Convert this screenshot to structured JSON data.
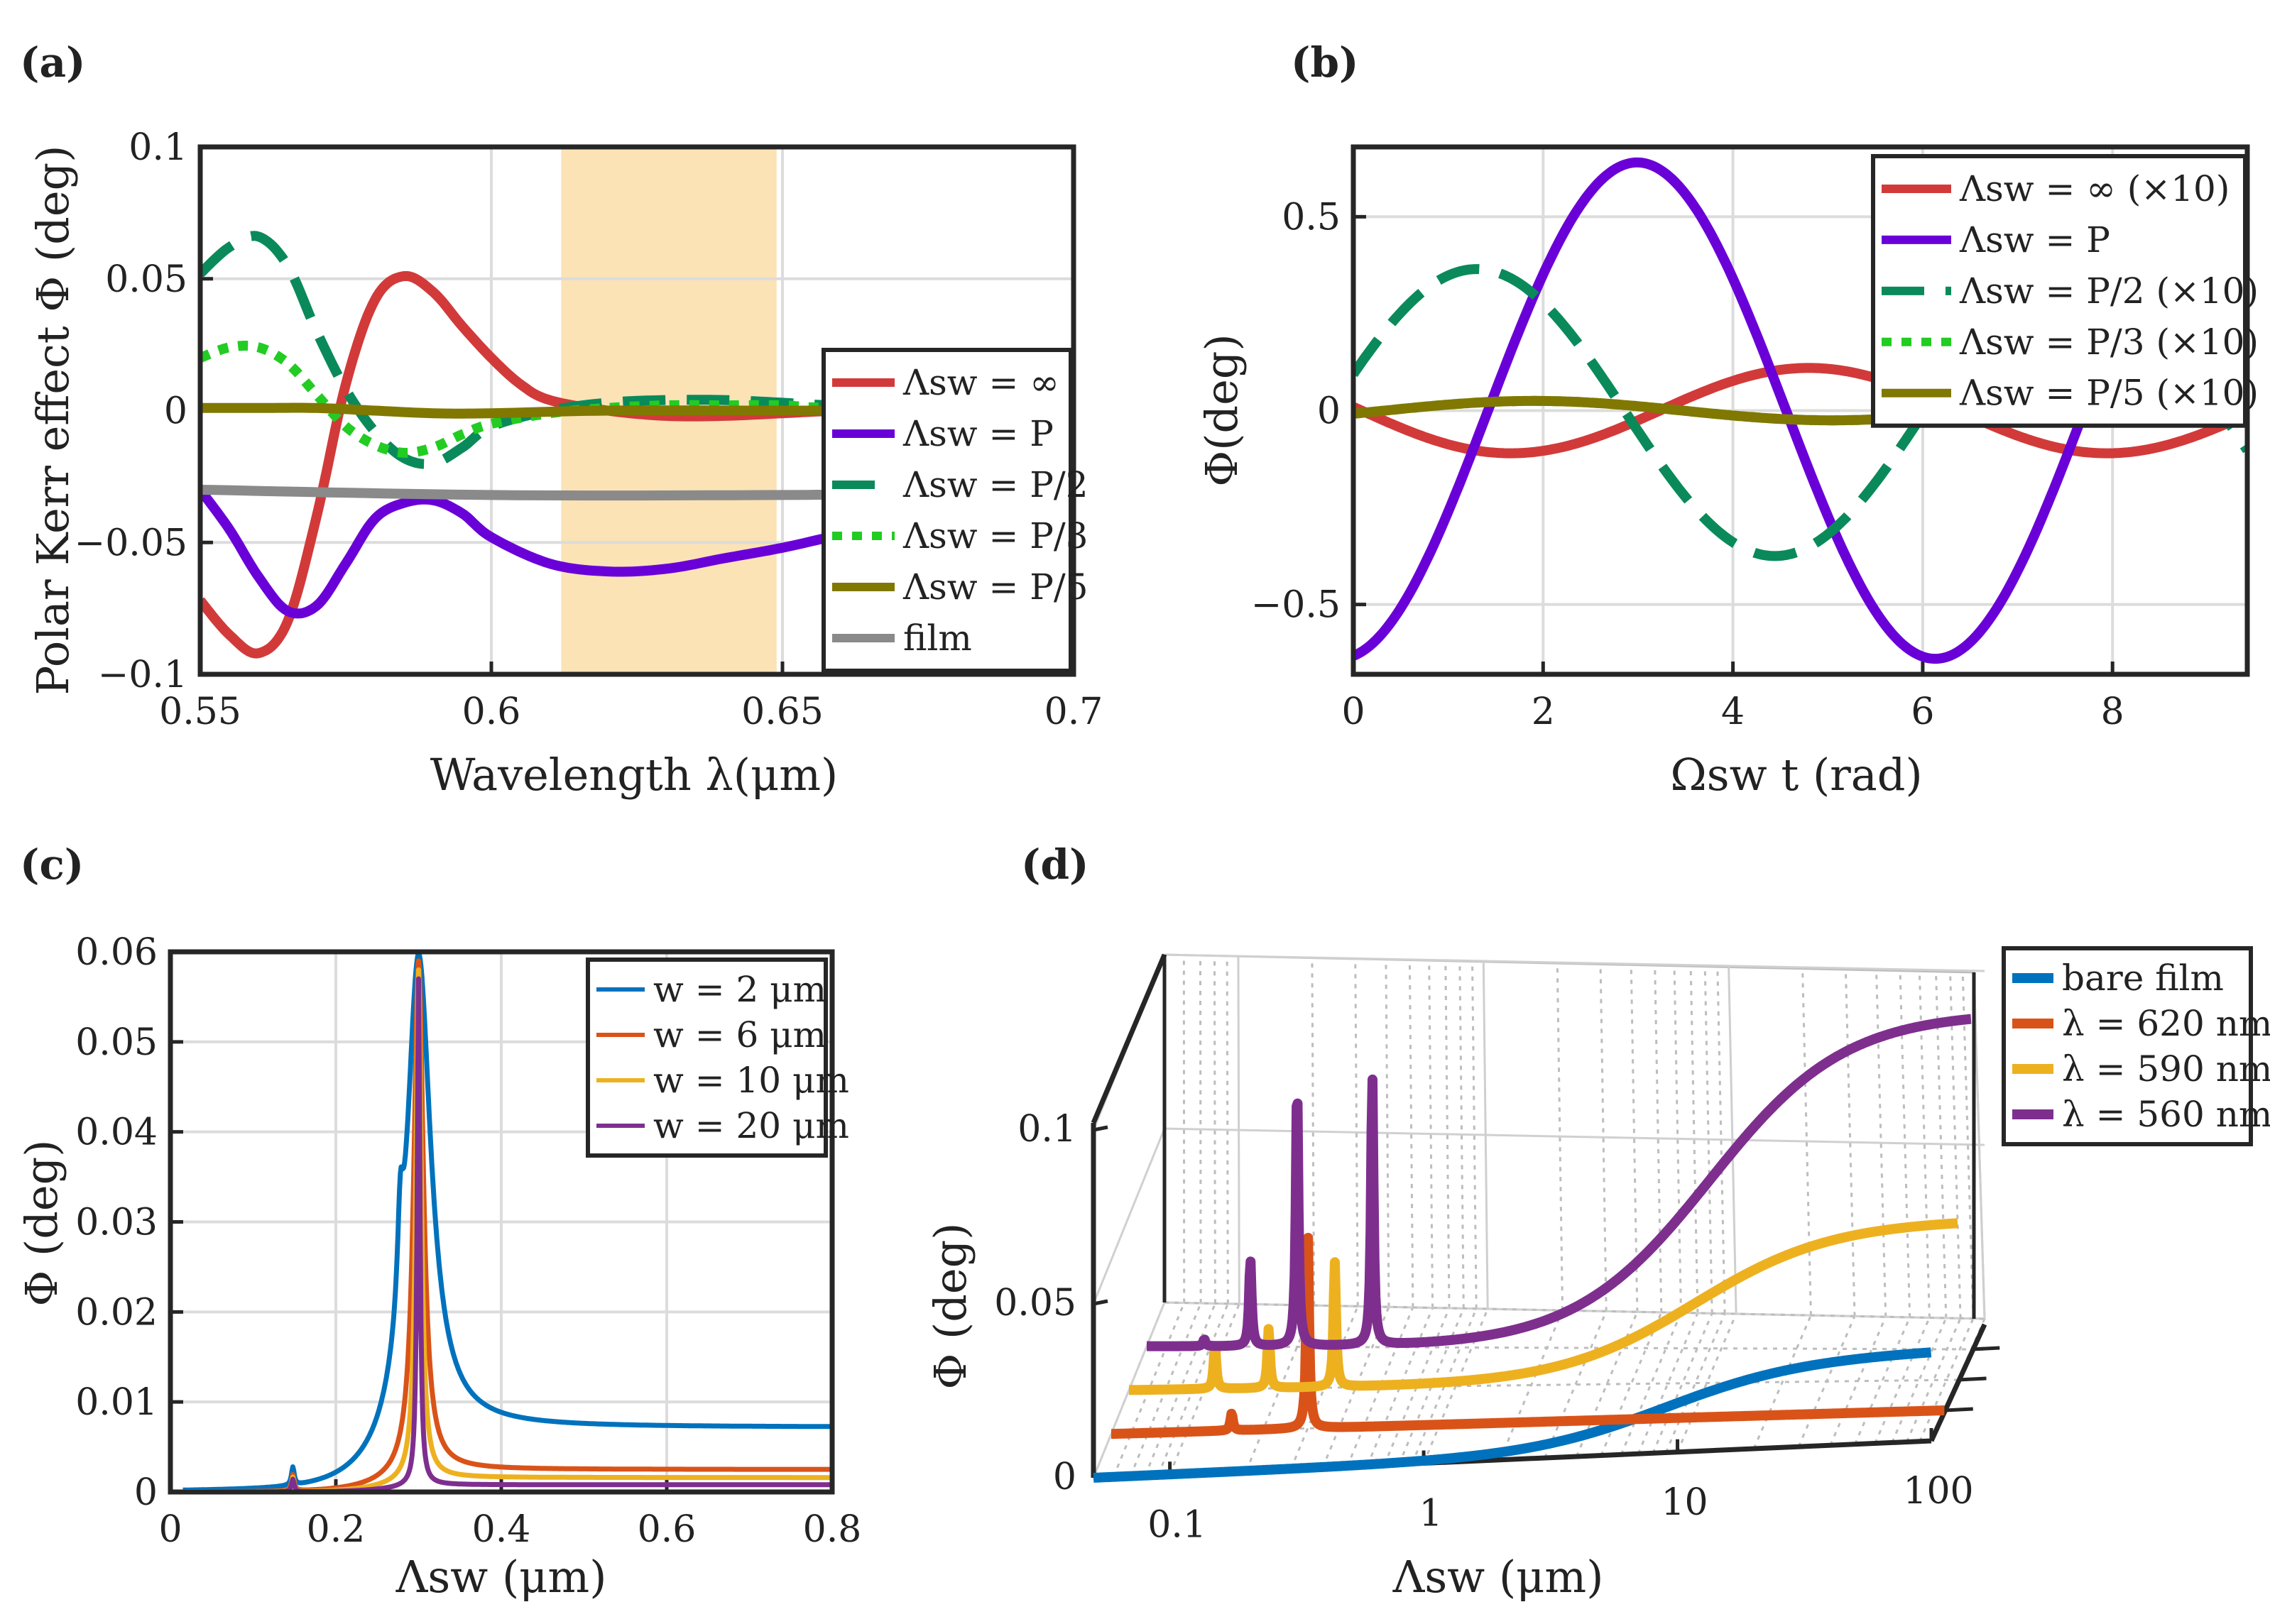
{
  "colors": {
    "red": "#d23a3a",
    "violet": "#6a00d8",
    "green": "#0a8a5a",
    "lime": "#22cc22",
    "olive": "#807800",
    "gray": "#8a8a8a",
    "band": "#fbe3b6",
    "blue": "#0072bd",
    "orange": "#d95319",
    "yellow": "#edb120",
    "purple": "#7e2f8e"
  },
  "chart_data": [
    {
      "id": "a",
      "panel_label": "(a)",
      "type": "line",
      "xlabel": "Wavelength λ(μm)",
      "ylabel": "Polar Kerr effect Φ (deg)",
      "xlim": [
        0.55,
        0.7
      ],
      "ylim": [
        -0.1,
        0.1
      ],
      "xticks": [
        0.55,
        0.6,
        0.65,
        0.7
      ],
      "xtick_labels": [
        "0.55",
        "0.6",
        "0.65",
        "0.7"
      ],
      "yticks": [
        -0.1,
        -0.05,
        0,
        0.05,
        0.1
      ],
      "ytick_labels": [
        "−0.1",
        "−0.05",
        "0",
        "0.05",
        "0.1"
      ],
      "shaded_band": [
        0.612,
        0.649
      ],
      "legend_location": "right",
      "series": [
        {
          "name": "Λsw = ∞",
          "color": "red",
          "style": "solid",
          "x": [
            0.55,
            0.555,
            0.56,
            0.565,
            0.57,
            0.575,
            0.58,
            0.585,
            0.59,
            0.595,
            0.6,
            0.605,
            0.61,
            0.62,
            0.63,
            0.64,
            0.65,
            0.66,
            0.67,
            0.68,
            0.69,
            0.7
          ],
          "y": [
            -0.072,
            -0.085,
            -0.092,
            -0.08,
            -0.04,
            0.01,
            0.042,
            0.051,
            0.045,
            0.032,
            0.02,
            0.01,
            0.004,
            0.0,
            -0.002,
            -0.002,
            -0.001,
            0.0,
            0.0,
            0.0,
            0.0,
            -0.012
          ]
        },
        {
          "name": "Λsw = P",
          "color": "violet",
          "style": "solid",
          "x": [
            0.55,
            0.555,
            0.56,
            0.565,
            0.57,
            0.575,
            0.58,
            0.585,
            0.59,
            0.595,
            0.6,
            0.61,
            0.62,
            0.63,
            0.64,
            0.65,
            0.66,
            0.67,
            0.68,
            0.69,
            0.7
          ],
          "y": [
            -0.03,
            -0.045,
            -0.063,
            -0.076,
            -0.074,
            -0.058,
            -0.041,
            -0.035,
            -0.034,
            -0.039,
            -0.048,
            -0.058,
            -0.061,
            -0.06,
            -0.056,
            -0.052,
            -0.047,
            -0.042,
            -0.036,
            -0.03,
            -0.025
          ]
        },
        {
          "name": "Λsw = P/2",
          "color": "green",
          "style": "dashed",
          "x": [
            0.55,
            0.555,
            0.56,
            0.565,
            0.57,
            0.575,
            0.58,
            0.585,
            0.59,
            0.595,
            0.6,
            0.61,
            0.62,
            0.63,
            0.64,
            0.65,
            0.66,
            0.7
          ],
          "y": [
            0.052,
            0.062,
            0.066,
            0.055,
            0.03,
            0.008,
            -0.008,
            -0.018,
            -0.02,
            -0.014,
            -0.006,
            0.0,
            0.003,
            0.004,
            0.004,
            0.003,
            0.002,
            0.001
          ]
        },
        {
          "name": "Λsw = P/3",
          "color": "lime",
          "style": "dotted",
          "x": [
            0.55,
            0.555,
            0.56,
            0.565,
            0.57,
            0.575,
            0.58,
            0.585,
            0.59,
            0.595,
            0.6,
            0.61,
            0.62,
            0.63,
            0.64,
            0.65,
            0.66,
            0.7
          ],
          "y": [
            0.02,
            0.024,
            0.024,
            0.018,
            0.006,
            -0.006,
            -0.013,
            -0.016,
            -0.014,
            -0.009,
            -0.005,
            -0.001,
            0.001,
            0.002,
            0.002,
            0.002,
            0.001,
            0.001
          ]
        },
        {
          "name": "Λsw = P/5",
          "color": "olive",
          "style": "solid",
          "x": [
            0.55,
            0.56,
            0.57,
            0.58,
            0.59,
            0.6,
            0.62,
            0.65,
            0.7
          ],
          "y": [
            0.001,
            0.001,
            0.001,
            0.0,
            -0.001,
            -0.001,
            0.0,
            0.0,
            0.0
          ]
        },
        {
          "name": "film",
          "color": "gray",
          "style": "solid",
          "x": [
            0.55,
            0.6,
            0.65,
            0.7
          ],
          "y": [
            -0.03,
            -0.032,
            -0.032,
            -0.031
          ]
        }
      ]
    },
    {
      "id": "b",
      "panel_label": "(b)",
      "type": "line",
      "xlabel": "Ωsw t (rad)",
      "ylabel": "Φ(deg)",
      "xlim": [
        0,
        9.42
      ],
      "ylim": [
        -0.68,
        0.68
      ],
      "xticks": [
        0,
        2,
        4,
        6,
        8
      ],
      "xtick_labels": [
        "0",
        "2",
        "4",
        "6",
        "8"
      ],
      "yticks": [
        -0.5,
        0,
        0.5
      ],
      "ytick_labels": [
        "−0.5",
        "0",
        "0.5"
      ],
      "legend_location": "top-right",
      "series": [
        {
          "name": "Λsw = ∞ (×10)",
          "color": "red",
          "style": "solid",
          "model": {
            "amp": 0.11,
            "phase_peak": 4.8,
            "offset": 0
          }
        },
        {
          "name": "Λsw = P",
          "color": "violet",
          "style": "solid",
          "model": {
            "amp": 0.64,
            "phase_peak": 2.99,
            "offset": 0
          }
        },
        {
          "name": "Λsw = P/2 (×10)",
          "color": "green",
          "style": "dashed",
          "model": {
            "amp": 0.37,
            "phase_peak": 1.3,
            "offset": -0.005
          }
        },
        {
          "name": "Λsw = P/3 (×10)",
          "color": "lime",
          "style": "dotted",
          "model": {
            "amp": 0.025,
            "phase_peak": 1.9,
            "offset": 0
          }
        },
        {
          "name": "Λsw = P/5 (×10)",
          "color": "olive",
          "style": "solid",
          "model": {
            "amp": 0.025,
            "phase_peak": 1.9,
            "offset": 0
          }
        }
      ]
    },
    {
      "id": "c",
      "panel_label": "(c)",
      "type": "line",
      "xlabel": "Λsw (μm)",
      "ylabel": "Φ (deg)",
      "xlim": [
        0,
        0.8
      ],
      "ylim": [
        0,
        0.06
      ],
      "xticks": [
        0,
        0.2,
        0.4,
        0.6,
        0.8
      ],
      "xtick_labels": [
        "0",
        "0.2",
        "0.4",
        "0.6",
        "0.8"
      ],
      "yticks": [
        0,
        0.01,
        0.02,
        0.03,
        0.04,
        0.05,
        0.06
      ],
      "ytick_labels": [
        "0",
        "0.01",
        "0.02",
        "0.03",
        "0.04",
        "0.05",
        "0.06"
      ],
      "legend_location": "top-right",
      "series": [
        {
          "name": "w = 2 μm",
          "color": "blue",
          "model": {
            "peak_x": 0.3,
            "peak_y": 0.0595,
            "width": 0.018,
            "tail": 0.0072,
            "side_x": 0.278,
            "side_y": 0.02,
            "small_x": 0.148,
            "small_y": 0.002
          }
        },
        {
          "name": "w = 6 μm",
          "color": "orange",
          "model": {
            "peak_x": 0.3,
            "peak_y": 0.059,
            "width": 0.007,
            "tail": 0.0025,
            "side_x": 0.0,
            "side_y": 0.0,
            "small_x": 0.148,
            "small_y": 0.0018
          }
        },
        {
          "name": "w = 10 μm",
          "color": "yellow",
          "model": {
            "peak_x": 0.3,
            "peak_y": 0.058,
            "width": 0.004,
            "tail": 0.0016,
            "side_x": 0.0,
            "side_y": 0.0,
            "small_x": 0.148,
            "small_y": 0.0016
          }
        },
        {
          "name": "w = 20 μm",
          "color": "purple",
          "model": {
            "peak_x": 0.3,
            "peak_y": 0.057,
            "width": 0.002,
            "tail": 0.0008,
            "side_x": 0.0,
            "side_y": 0.0,
            "small_x": 0.148,
            "small_y": 0.0014
          }
        }
      ]
    },
    {
      "id": "d",
      "panel_label": "(d)",
      "type": "line",
      "projection": "3d",
      "xscale": "log",
      "xlabel": "Λsw (μm)",
      "ylabel": "Φ (deg)",
      "xlim": [
        0.05,
        100
      ],
      "zlim": [
        0,
        0.13
      ],
      "xticks": [
        0.1,
        1,
        10,
        100
      ],
      "xtick_labels": [
        "0.1",
        "1",
        "10",
        "100"
      ],
      "zticks": [
        0,
        0.05,
        0.1
      ],
      "ztick_labels": [
        "0",
        "0.05",
        "0.1"
      ],
      "legend_location": "top-right-outside",
      "series": [
        {
          "name": "bare film",
          "color": "blue",
          "layer": 0,
          "model": {
            "base": 0.0,
            "plateau": 0.026,
            "step_center": 9,
            "peaks": []
          }
        },
        {
          "name": "λ = 620 nm",
          "color": "orange",
          "layer": 1,
          "model": {
            "base": 0.0,
            "plateau": 0.0,
            "step_center": 9,
            "peaks": [
              [
                0.15,
                0.005
              ],
              [
                0.3,
                0.06
              ]
            ]
          }
        },
        {
          "name": "λ = 590 nm",
          "color": "yellow",
          "layer": 2,
          "model": {
            "base": 0.0,
            "plateau": 0.046,
            "step_center": 9,
            "peaks": [
              [
                0.11,
                0.013
              ],
              [
                0.18,
                0.017
              ],
              [
                0.33,
                0.036
              ]
            ]
          }
        },
        {
          "name": "λ = 560 nm",
          "color": "purple",
          "layer": 3,
          "model": {
            "base": 0.0,
            "plateau": 0.097,
            "step_center": 9,
            "peaks": [
              [
                0.085,
                0.002
              ],
              [
                0.13,
                0.025
              ],
              [
                0.2,
                0.077
              ],
              [
                0.4,
                0.078
              ]
            ]
          }
        }
      ]
    }
  ]
}
